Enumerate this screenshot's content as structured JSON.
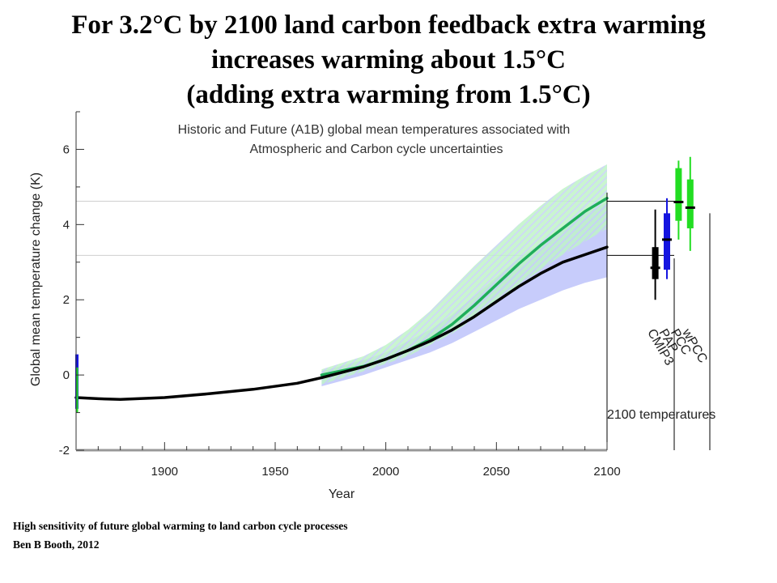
{
  "slide": {
    "title_lines": [
      "For 3.2°C by 2100 land carbon feedback extra warming",
      "increases warming about 1.5°C",
      "(adding extra warming from 1.5°C)"
    ],
    "credit_line1": "High sensitivity of future global warming to land carbon cycle processes",
    "credit_line2": "Ben B Booth, 2012"
  },
  "chart_data": {
    "type": "line",
    "title_lines": [
      "Historic and Future (A1B) global mean temperatures associated with",
      "Atmospheric and Carbon cycle uncertainties"
    ],
    "xlabel": "Year",
    "ylabel": "Global mean temperature change (K)",
    "xlim": [
      1860,
      2100
    ],
    "ylim": [
      -2,
      7
    ],
    "xticks": [
      1900,
      1950,
      2000,
      2050,
      2100
    ],
    "yticks": [
      -2,
      0,
      2,
      4,
      6
    ],
    "x_tick_labels": [
      "1900",
      "1950",
      "2000",
      "2050",
      "2100"
    ],
    "y_tick_labels": [
      "-2",
      "0",
      "2",
      "4",
      "6"
    ],
    "colors": {
      "green": "#1fae5a",
      "black": "#000000",
      "green_band": "#bff3c8",
      "blue_band": "#c7ccfb",
      "box_blue": "#1515e0",
      "box_green": "#22dd22",
      "box_black": "#000000"
    },
    "series": [
      {
        "color": "#1fae5a",
        "x": [
          1971,
          1990,
          2000,
          2010,
          2020,
          2030,
          2040,
          2050,
          2060,
          2070,
          2080,
          2090,
          2100
        ],
        "y": [
          0.0,
          0.23,
          0.42,
          0.65,
          0.95,
          1.35,
          1.85,
          2.4,
          2.95,
          3.45,
          3.9,
          4.35,
          4.7
        ]
      },
      {
        "color": "#000000",
        "x": [
          1860,
          1870,
          1880,
          1900,
          1920,
          1940,
          1960,
          1971,
          1990,
          2000,
          2010,
          2020,
          2030,
          2040,
          2050,
          2060,
          2070,
          2080,
          2090,
          2100
        ],
        "y": [
          -0.6,
          -0.63,
          -0.65,
          -0.6,
          -0.5,
          -0.38,
          -0.22,
          -0.07,
          0.22,
          0.42,
          0.65,
          0.9,
          1.2,
          1.55,
          1.95,
          2.35,
          2.7,
          3.0,
          3.2,
          3.4
        ]
      }
    ],
    "bands": [
      {
        "color": "#c7ccfb",
        "x": [
          1971,
          1990,
          2000,
          2010,
          2020,
          2030,
          2040,
          2050,
          2060,
          2070,
          2080,
          2090,
          2100
        ],
        "upper": [
          0.1,
          0.4,
          0.6,
          0.9,
          1.2,
          1.6,
          2.1,
          2.6,
          3.1,
          3.5,
          3.9,
          4.3,
          4.6
        ],
        "lower": [
          -0.3,
          0.0,
          0.2,
          0.4,
          0.6,
          0.85,
          1.15,
          1.45,
          1.75,
          2.0,
          2.25,
          2.45,
          2.6
        ]
      },
      {
        "color": "#bff3c8",
        "x": [
          1971,
          1990,
          2000,
          2010,
          2020,
          2030,
          2040,
          2050,
          2060,
          2070,
          2080,
          2090,
          2100
        ],
        "upper": [
          0.15,
          0.5,
          0.8,
          1.2,
          1.7,
          2.3,
          2.9,
          3.45,
          4.0,
          4.5,
          4.95,
          5.3,
          5.6
        ],
        "lower": [
          -0.25,
          0.1,
          0.3,
          0.5,
          0.8,
          1.1,
          1.5,
          1.9,
          2.4,
          2.8,
          3.2,
          3.55,
          3.9
        ]
      }
    ],
    "reference_lines": [
      4.62,
      3.18
    ],
    "box_label_suffix": "2100 temperatures",
    "boxes": [
      {
        "label": "CMIP3",
        "color": "#000000",
        "whisker": [
          2.0,
          4.4
        ],
        "box": [
          2.55,
          3.4
        ],
        "median": 2.85,
        "x_offset": 22
      },
      {
        "label": "PAP",
        "color": "#1515e0",
        "whisker": [
          2.55,
          4.7
        ],
        "box": [
          2.8,
          4.3
        ],
        "median": 3.6,
        "x_offset": 30
      },
      {
        "label": "PCC",
        "color": "#22dd22",
        "whisker": [
          3.6,
          5.7
        ],
        "box": [
          4.1,
          5.5
        ],
        "median": 4.6,
        "x_offset": 38
      },
      {
        "label": "wPCC",
        "color": "#22dd22",
        "whisker": [
          3.3,
          5.8
        ],
        "box": [
          3.9,
          5.2
        ],
        "median": 4.45,
        "x_offset": 46
      }
    ]
  }
}
